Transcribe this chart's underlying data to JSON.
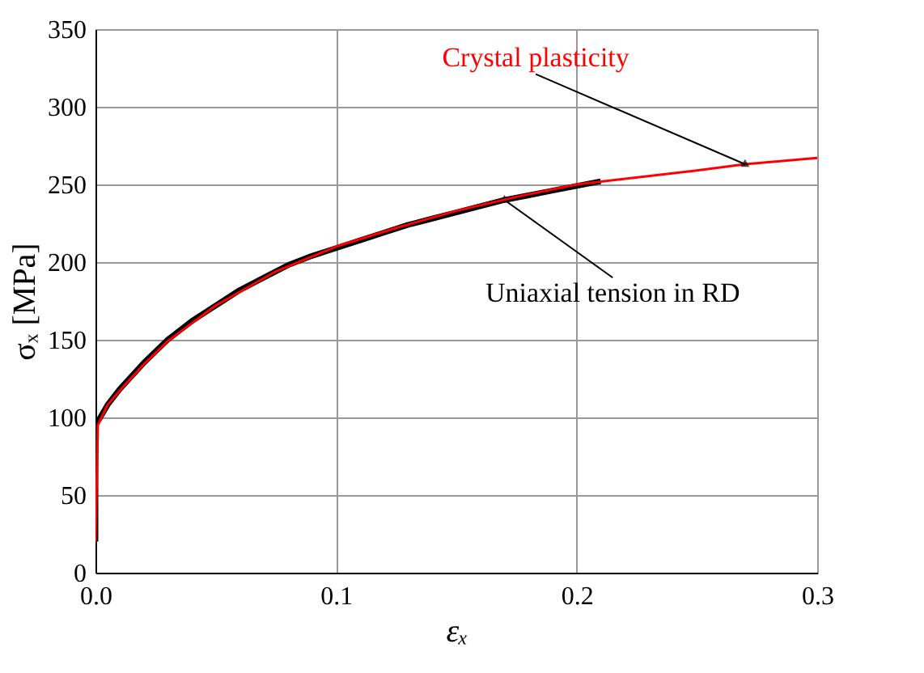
{
  "chart_data": {
    "type": "line",
    "xlabel": "εₓ",
    "ylabel": "σₓ [MPa]",
    "xlim": [
      0,
      0.3
    ],
    "xticks": [
      {
        "value": 0,
        "label": "0.0"
      },
      {
        "value": 0.1,
        "label": "0.1"
      },
      {
        "value": 0.2,
        "label": "0.2"
      },
      {
        "value": 0.3,
        "label": "0.3"
      }
    ],
    "ylim": [
      0,
      350
    ],
    "yticks": [
      0,
      50,
      100,
      150,
      200,
      250,
      300,
      350
    ],
    "grid": true,
    "marker": "none",
    "line_style": "solid",
    "series": [
      {
        "name": "Uniaxial tension in RD",
        "color": "#000000",
        "x": [
          0,
          0,
          0.002,
          0.005,
          0.01,
          0.02,
          0.03,
          0.04,
          0.05,
          0.06,
          0.07,
          0.08,
          0.09,
          0.1,
          0.11,
          0.12,
          0.13,
          0.14,
          0.15,
          0.16,
          0.17,
          0.18,
          0.19,
          0.2,
          0.21
        ],
        "values": [
          20,
          95,
          100,
          108,
          118,
          135,
          150,
          162,
          172,
          182,
          190,
          198,
          204,
          209,
          214,
          219,
          224,
          228,
          232,
          236,
          240,
          243,
          246,
          249,
          252
        ]
      },
      {
        "name": "Crystal plasticity",
        "color": "#ff0000",
        "x": [
          0,
          0.001,
          0.005,
          0.01,
          0.02,
          0.03,
          0.05,
          0.075,
          0.1,
          0.125,
          0.15,
          0.175,
          0.2,
          0.25,
          0.27,
          0.3
        ],
        "values": [
          20,
          95,
          108,
          117,
          134,
          149,
          172,
          194,
          210,
          222,
          233,
          242,
          250,
          259,
          263,
          267
        ]
      }
    ]
  }
}
